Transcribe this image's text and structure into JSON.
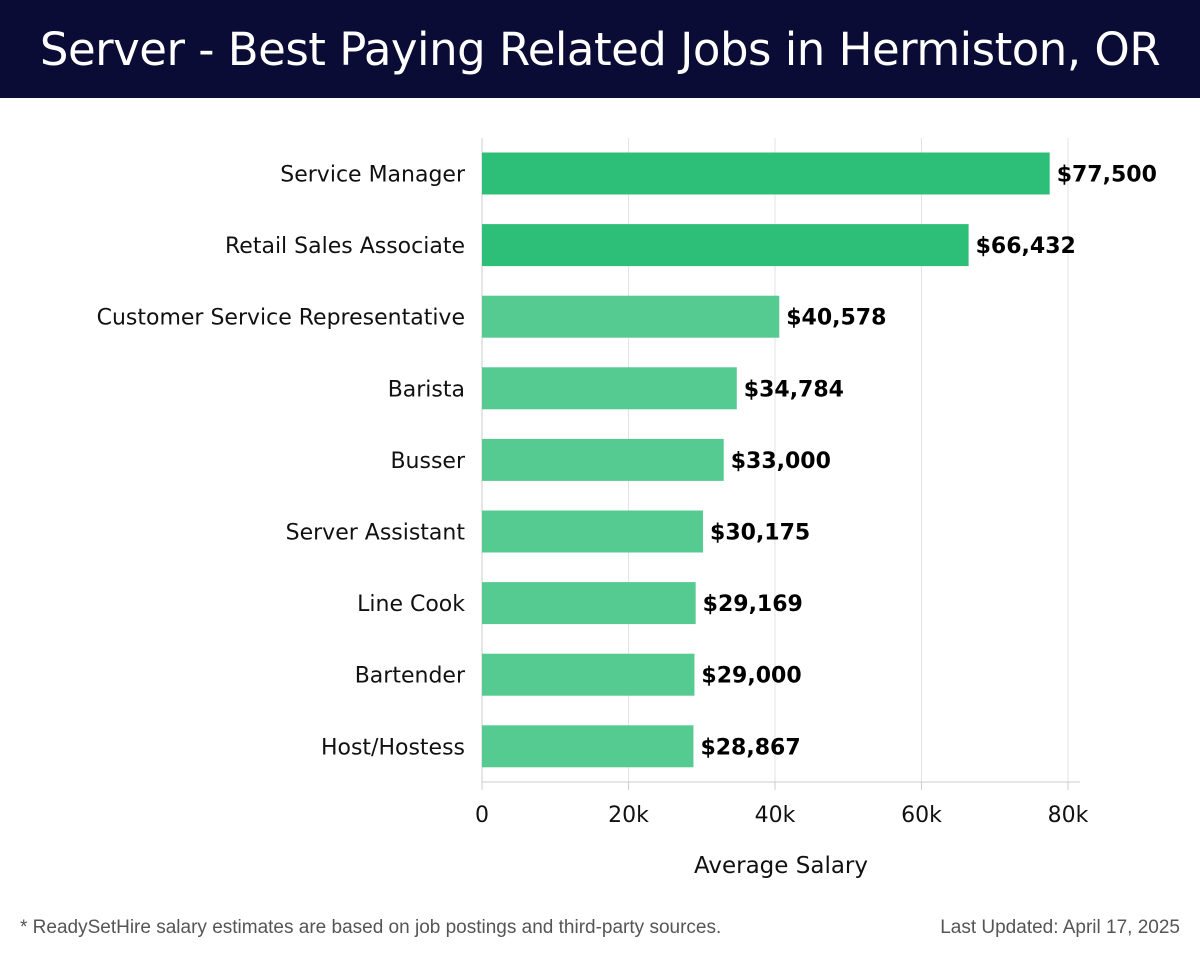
{
  "header": {
    "title": "Server - Best Paying Related Jobs in Hermiston, OR"
  },
  "chart_data": {
    "type": "bar",
    "orientation": "horizontal",
    "categories": [
      "Service Manager",
      "Retail Sales Associate",
      "Customer Service Representative",
      "Barista",
      "Busser",
      "Server Assistant",
      "Line Cook",
      "Bartender",
      "Host/Hostess"
    ],
    "values": [
      77500,
      66432,
      40578,
      34784,
      33000,
      30175,
      29169,
      29000,
      28867
    ],
    "value_labels": [
      "$77,500",
      "$66,432",
      "$40,578",
      "$34,784",
      "$33,000",
      "$30,175",
      "$29,169",
      "$29,000",
      "$28,867"
    ],
    "xlabel": "Average Salary",
    "ylabel": "",
    "xlim": [
      0,
      80000
    ],
    "x_ticks": [
      0,
      20000,
      40000,
      60000,
      80000
    ],
    "x_tick_labels": [
      "0",
      "20k",
      "40k",
      "60k",
      "80k"
    ],
    "grid": "vertical",
    "colors": {
      "highlight": "#2dbf78",
      "bar": "#55cb91",
      "grid": "#e3e3e3",
      "axis": "#cccccc"
    },
    "highlight_count": 2
  },
  "footer": {
    "note": "* ReadySetHire salary estimates are based on job postings and third-party sources.",
    "updated": "Last Updated: April 17, 2025"
  }
}
